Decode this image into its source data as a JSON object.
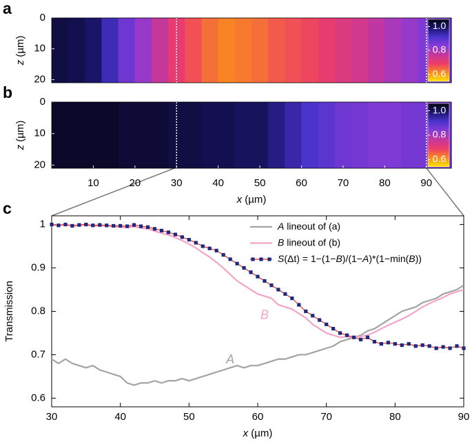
{
  "chart_data": [
    {
      "type": "heatmap",
      "panel_label": "a",
      "x_bins": [
        0,
        4,
        8,
        12,
        16,
        20,
        24,
        28,
        32,
        36,
        40,
        44,
        48,
        52,
        56,
        60,
        64,
        68,
        72,
        76,
        80,
        84,
        88,
        92,
        96
      ],
      "values": [
        1.02,
        1.01,
        0.99,
        0.93,
        0.87,
        0.82,
        0.76,
        0.7,
        0.67,
        0.64,
        0.62,
        0.63,
        0.64,
        0.66,
        0.67,
        0.68,
        0.7,
        0.72,
        0.74,
        0.77,
        0.8,
        0.82,
        0.85,
        0.88
      ],
      "xlim": [
        0,
        96
      ],
      "zlim": [
        0,
        21
      ],
      "zticks": [
        0,
        10,
        20
      ],
      "zlabel": "z (µm)",
      "guides": [
        30,
        90
      ],
      "clim": [
        0.54,
        1.06
      ],
      "cticks": [
        {
          "value": 1,
          "label": "1.0"
        },
        0.8,
        0.6
      ],
      "colormap": [
        "#ffe600",
        "#f98a1e",
        "#ee3d68",
        "#c4379d",
        "#8a3ad6",
        "#4a33cc",
        "#1c1670",
        "#04040f"
      ]
    },
    {
      "type": "heatmap",
      "panel_label": "b",
      "x_bins": [
        0,
        4,
        8,
        12,
        16,
        20,
        24,
        28,
        32,
        36,
        40,
        44,
        48,
        52,
        56,
        60,
        64,
        68,
        72,
        76,
        80,
        84,
        88,
        92,
        96
      ],
      "values": [
        1.04,
        1.04,
        1.04,
        1.04,
        1.03,
        1.03,
        1.03,
        1.02,
        1.02,
        1.01,
        1.01,
        1.0,
        1.0,
        0.97,
        0.94,
        0.91,
        0.89,
        0.87,
        0.86,
        0.85,
        0.85,
        0.86,
        0.86,
        0.87
      ],
      "xlim": [
        0,
        96
      ],
      "xticks": [
        10,
        20,
        30,
        40,
        50,
        60,
        70,
        80,
        90
      ],
      "xlabel": "x (µm)",
      "zlim": [
        0,
        21
      ],
      "zticks": [
        0,
        10,
        20
      ],
      "zlabel": "z (µm)",
      "guides": [
        30,
        90
      ],
      "clim": [
        0.54,
        1.06
      ],
      "cticks": [
        {
          "value": 1,
          "label": "1.0"
        },
        0.8,
        0.6
      ],
      "colormap": [
        "#ffe600",
        "#f98a1e",
        "#ee3d68",
        "#c4379d",
        "#8a3ad6",
        "#4a33cc",
        "#1c1670",
        "#04040f"
      ]
    },
    {
      "type": "line",
      "panel_label": "c",
      "x": [
        30,
        31,
        32,
        33,
        34,
        35,
        36,
        37,
        38,
        39,
        40,
        41,
        42,
        43,
        44,
        45,
        46,
        47,
        48,
        49,
        50,
        51,
        52,
        53,
        54,
        55,
        56,
        57,
        58,
        59,
        60,
        61,
        62,
        63,
        64,
        65,
        66,
        67,
        68,
        69,
        70,
        71,
        72,
        73,
        74,
        75,
        76,
        77,
        78,
        79,
        80,
        81,
        82,
        83,
        84,
        85,
        86,
        87,
        88,
        89,
        90
      ],
      "series": [
        {
          "name": "A lineout of (a)",
          "color": "#a3a3a3",
          "values": [
            0.69,
            0.68,
            0.69,
            0.68,
            0.675,
            0.67,
            0.675,
            0.665,
            0.66,
            0.655,
            0.65,
            0.635,
            0.63,
            0.635,
            0.635,
            0.64,
            0.635,
            0.64,
            0.64,
            0.645,
            0.64,
            0.645,
            0.65,
            0.655,
            0.66,
            0.665,
            0.67,
            0.675,
            0.67,
            0.675,
            0.675,
            0.68,
            0.685,
            0.69,
            0.69,
            0.695,
            0.7,
            0.7,
            0.705,
            0.71,
            0.715,
            0.72,
            0.73,
            0.735,
            0.74,
            0.745,
            0.755,
            0.76,
            0.77,
            0.78,
            0.79,
            0.8,
            0.805,
            0.81,
            0.82,
            0.825,
            0.83,
            0.84,
            0.845,
            0.85,
            0.86
          ]
        },
        {
          "name": "B lineout of (b)",
          "color": "#f4a3c8",
          "values": [
            1.0,
            0.998,
            1.0,
            0.997,
            0.998,
            1.0,
            0.996,
            0.998,
            0.997,
            0.995,
            0.994,
            0.993,
            0.995,
            0.992,
            0.99,
            0.985,
            0.98,
            0.976,
            0.97,
            0.963,
            0.955,
            0.946,
            0.935,
            0.925,
            0.913,
            0.9,
            0.885,
            0.87,
            0.86,
            0.85,
            0.84,
            0.835,
            0.83,
            0.815,
            0.81,
            0.805,
            0.795,
            0.785,
            0.77,
            0.76,
            0.75,
            0.745,
            0.74,
            0.742,
            0.74,
            0.742,
            0.745,
            0.752,
            0.76,
            0.768,
            0.775,
            0.782,
            0.79,
            0.8,
            0.81,
            0.818,
            0.825,
            0.832,
            0.84,
            0.845,
            0.85
          ]
        },
        {
          "name": "S(Δt) = 1−(1−B)/(1−A)*(1−min(B))",
          "color": "#1d2a7e",
          "line_color": "#e2302a",
          "marker": "square",
          "values": [
            1.0,
            0.998,
            1.0,
            0.997,
            0.999,
            1.0,
            0.998,
            0.999,
            0.998,
            0.997,
            0.997,
            0.996,
            0.999,
            0.996,
            0.994,
            0.99,
            0.986,
            0.982,
            0.977,
            0.971,
            0.965,
            0.958,
            0.95,
            0.945,
            0.94,
            0.93,
            0.92,
            0.91,
            0.9,
            0.89,
            0.88,
            0.87,
            0.86,
            0.85,
            0.84,
            0.83,
            0.815,
            0.8,
            0.79,
            0.78,
            0.77,
            0.76,
            0.75,
            0.745,
            0.74,
            0.735,
            0.74,
            0.73,
            0.725,
            0.728,
            0.725,
            0.722,
            0.725,
            0.72,
            0.722,
            0.72,
            0.715,
            0.718,
            0.715,
            0.72,
            0.715
          ]
        }
      ],
      "xlim": [
        30,
        90
      ],
      "ylim": [
        0.58,
        1.02
      ],
      "xticks": [
        30,
        40,
        50,
        60,
        70,
        80,
        90
      ],
      "yticks": [
        0.6,
        0.7,
        0.8,
        0.9,
        1
      ],
      "xlabel": "x (µm)",
      "ylabel": "Transmission",
      "legend": "upper right",
      "annotations": [
        {
          "text": "A",
          "x": 56,
          "y": 0.688,
          "color": "#a3a3a3"
        },
        {
          "text": "B",
          "x": 61,
          "y": 0.79,
          "color": "#f4a3c8"
        }
      ]
    }
  ]
}
